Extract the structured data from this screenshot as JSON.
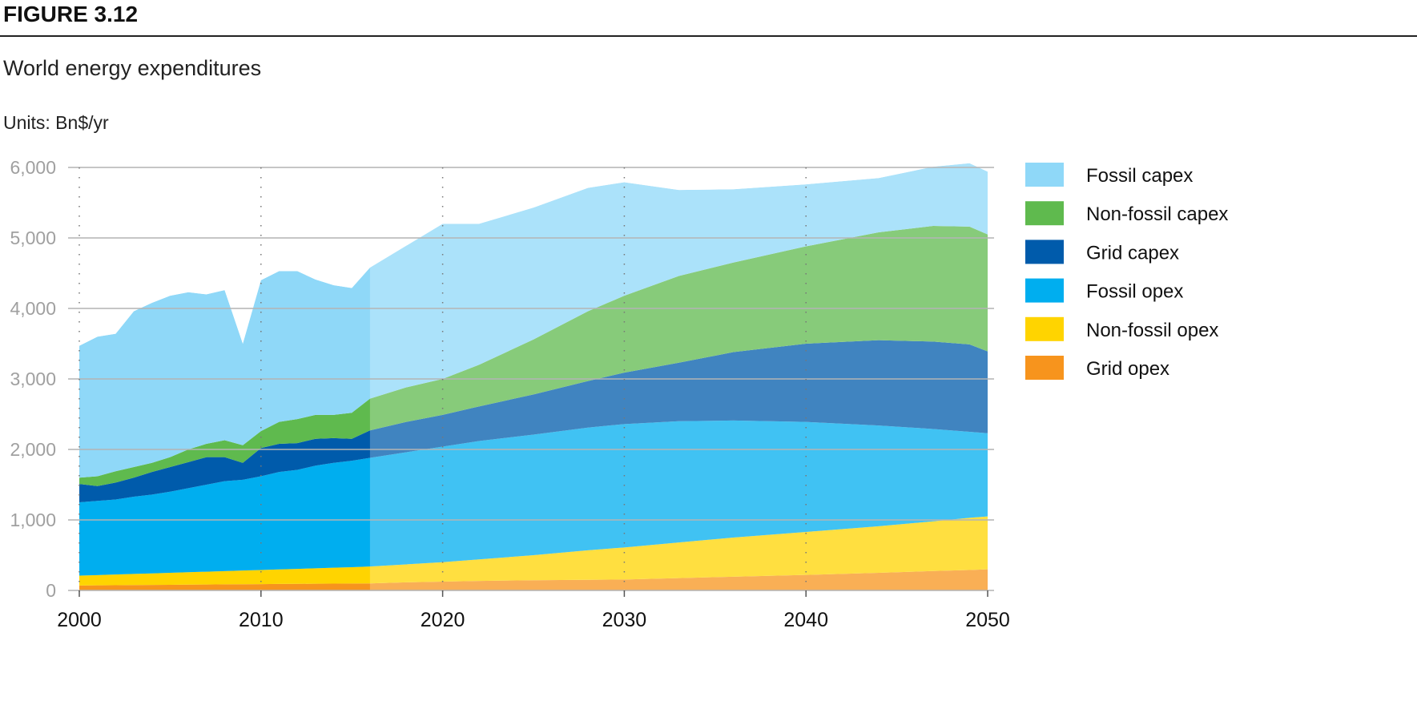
{
  "figure_label": "FIGURE 3.12",
  "chart_data": {
    "type": "area",
    "stacked": true,
    "title": "World energy expenditures",
    "units": "Units: Bn$/yr",
    "xlabel": "",
    "ylabel": "",
    "ylim": [
      0,
      6000
    ],
    "xlim": [
      2000,
      2050
    ],
    "yticks": [
      "0",
      "1,000",
      "2,000",
      "3,000",
      "4,000",
      "5,000",
      "6,000"
    ],
    "ytick_values": [
      0,
      1000,
      2000,
      3000,
      4000,
      5000,
      6000
    ],
    "xticks": [
      "2000",
      "2010",
      "2020",
      "2030",
      "2040",
      "2050"
    ],
    "xtick_values": [
      2000,
      2010,
      2020,
      2030,
      2040,
      2050
    ],
    "grid": "horizontal solid, vertical dotted at decades",
    "legend_position": "right",
    "projection_start": 2016,
    "x": [
      2000,
      2001,
      2002,
      2003,
      2004,
      2005,
      2006,
      2007,
      2008,
      2009,
      2010,
      2011,
      2012,
      2013,
      2014,
      2015,
      2016,
      2018,
      2020,
      2022,
      2025,
      2028,
      2030,
      2033,
      2036,
      2040,
      2044,
      2047,
      2049,
      2050
    ],
    "series": [
      {
        "name": "Grid opex",
        "color": "#f7941d",
        "values": [
          70,
          72,
          74,
          76,
          78,
          80,
          82,
          84,
          86,
          88,
          90,
          92,
          94,
          95,
          96,
          98,
          100,
          115,
          125,
          135,
          145,
          150,
          155,
          175,
          195,
          220,
          250,
          275,
          290,
          300
        ]
      },
      {
        "name": "Non-fossil opex",
        "color": "#ffd400",
        "values": [
          140,
          146,
          152,
          158,
          164,
          170,
          176,
          182,
          188,
          194,
          200,
          206,
          212,
          219,
          226,
          232,
          240,
          255,
          275,
          305,
          355,
          420,
          455,
          505,
          555,
          610,
          660,
          705,
          740,
          750
        ]
      },
      {
        "name": "Fossil opex",
        "color": "#00aeef",
        "values": [
          1040,
          1052,
          1064,
          1096,
          1118,
          1150,
          1192,
          1234,
          1276,
          1288,
          1330,
          1382,
          1404,
          1456,
          1488,
          1510,
          1540,
          1590,
          1640,
          1680,
          1710,
          1740,
          1750,
          1720,
          1660,
          1560,
          1430,
          1310,
          1220,
          1180
        ]
      },
      {
        "name": "Grid capex",
        "color": "#005bab",
        "values": [
          260,
          210,
          240,
          270,
          320,
          350,
          370,
          390,
          340,
          240,
          400,
          400,
          380,
          380,
          350,
          310,
          390,
          430,
          450,
          490,
          570,
          660,
          730,
          830,
          970,
          1110,
          1210,
          1240,
          1240,
          1160
        ]
      },
      {
        "name": "Non-fossil capex",
        "color": "#5fba4e",
        "values": [
          90,
          140,
          160,
          150,
          130,
          140,
          180,
          190,
          240,
          250,
          240,
          310,
          340,
          340,
          330,
          370,
          450,
          490,
          510,
          590,
          780,
          990,
          1090,
          1230,
          1270,
          1380,
          1530,
          1640,
          1670,
          1660
        ]
      },
      {
        "name": "Fossil capex",
        "color": "#8fd8f8",
        "values": [
          1870,
          1980,
          1950,
          2210,
          2270,
          2290,
          2230,
          2120,
          2130,
          1440,
          2140,
          2140,
          2100,
          1920,
          1840,
          1770,
          1860,
          2010,
          2200,
          2000,
          1870,
          1750,
          1610,
          1220,
          1040,
          880,
          770,
          840,
          900,
          890
        ]
      }
    ],
    "legend_order": [
      "Fossil capex",
      "Non-fossil capex",
      "Grid capex",
      "Fossil opex",
      "Non-fossil opex",
      "Grid opex"
    ]
  }
}
